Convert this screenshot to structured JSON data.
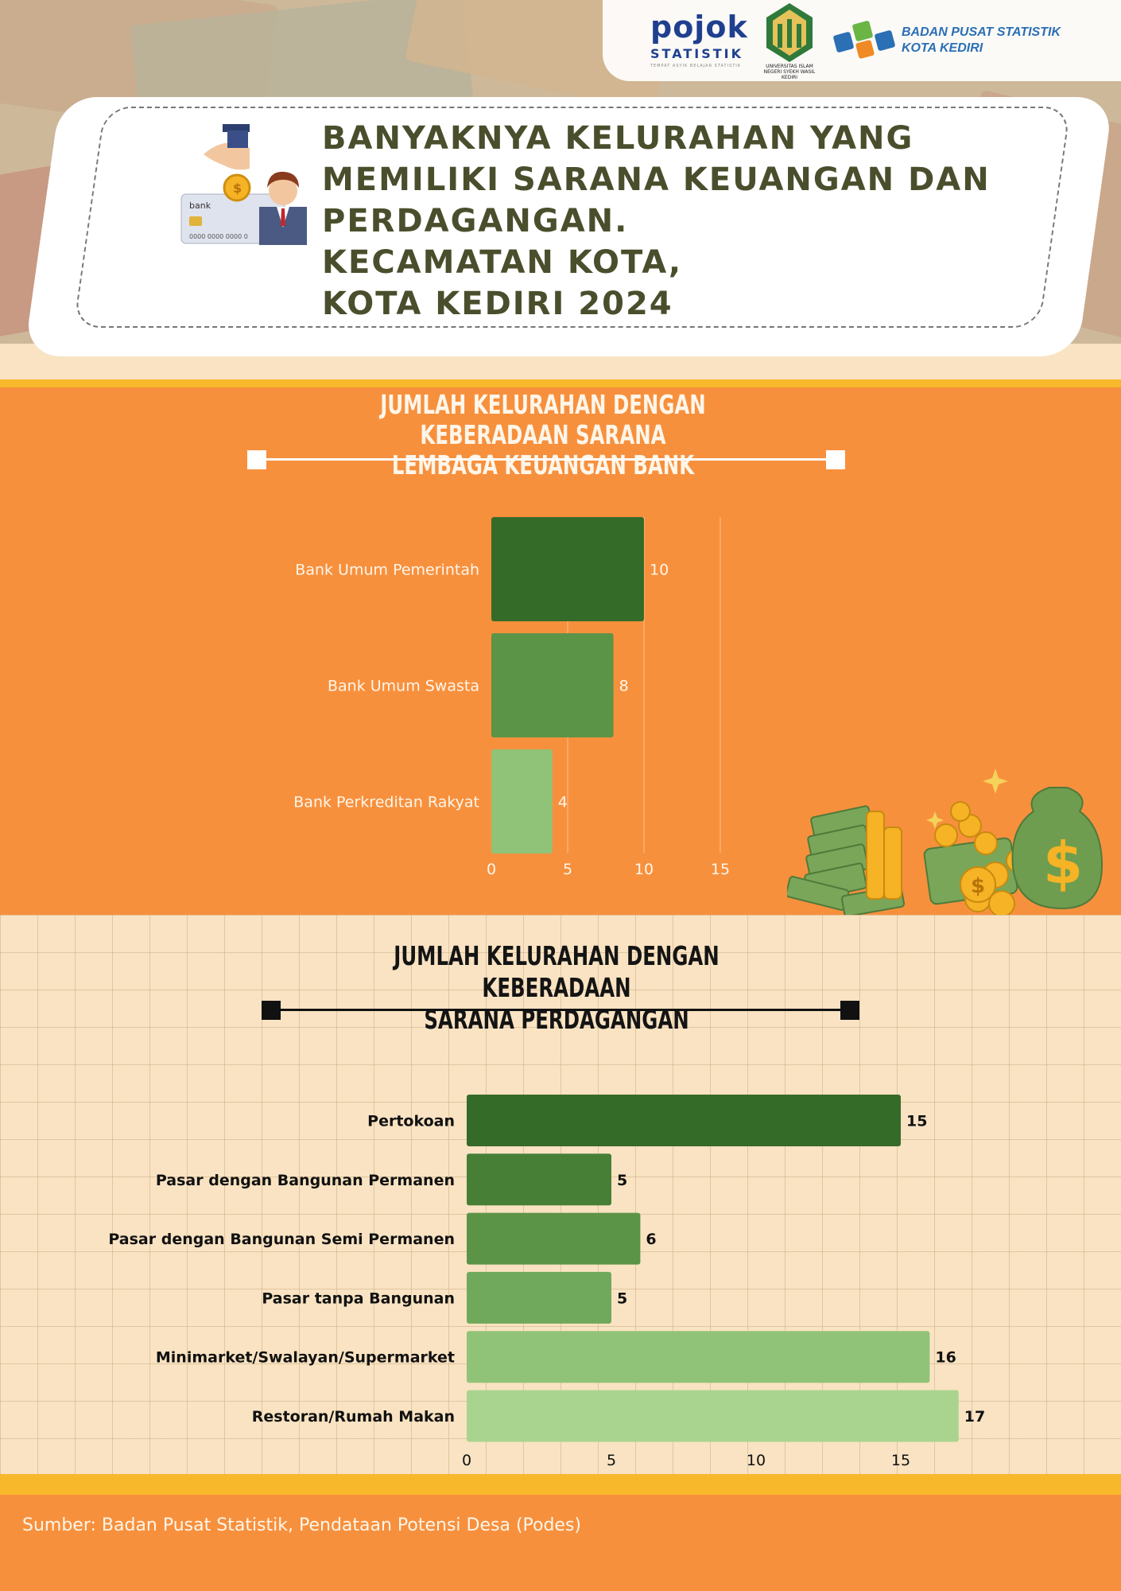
{
  "header": {
    "logo_pojok": "pojok",
    "logo_pojok_sub": "STATISTIK",
    "logo_pojok_tagline": "TEMPAT ASYIK BELAJAR STATISTIK",
    "logo_uin_label": "UNIVERSITAS ISLAM NEGERI SYEKH WASIL KEDIRI",
    "logo_bps_line1": "BADAN PUSAT STATISTIK",
    "logo_bps_line2": "KOTA KEDIRI"
  },
  "title": {
    "line1": "BANYAKNYA KELURAHAN YANG",
    "line2": "MEMILIKI SARANA KEUANGAN DAN",
    "line3": "PERDAGANGAN.",
    "line4": "KECAMATAN KOTA,",
    "line5": "KOTA KEDIRI  2024",
    "card_text_bank": "bank",
    "card_text_number": "0000 0000 0000 0"
  },
  "colors": {
    "orange": "#f7903d",
    "cream": "#f9e3c2",
    "yellow": "#f8b82b",
    "title_text": "#4a4e2c",
    "bank_bars": [
      "#356b29",
      "#5c9447",
      "#90c377"
    ],
    "trade_bars": [
      "#356b29",
      "#477f37",
      "#5c9447",
      "#70a95b",
      "#90c377",
      "#a9d48f"
    ]
  },
  "chart_data": [
    {
      "type": "bar",
      "orientation": "horizontal",
      "title": "JUMLAH KELURAHAN DENGAN KEBERADAAN SARANA LEMBAGA KEUANGAN BANK",
      "title_line1": "JUMLAH KELURAHAN DENGAN KEBERADAAN SARANA",
      "title_line2": "LEMBAGA KEUANGAN BANK",
      "categories": [
        "Bank Umum Pemerintah",
        "Bank Umum Swasta",
        "Bank Perkreditan Rakyat"
      ],
      "values": [
        10,
        8,
        4
      ],
      "xlim": [
        0,
        15
      ],
      "xticks": [
        0,
        5,
        10,
        15
      ],
      "xlabel": "",
      "ylabel": ""
    },
    {
      "type": "bar",
      "orientation": "horizontal",
      "title": "JUMLAH KELURAHAN DENGAN KEBERADAAN SARANA PERDAGANGAN",
      "title_line1": "JUMLAH KELURAHAN DENGAN KEBERADAAN",
      "title_line2": "SARANA PERDAGANGAN",
      "categories": [
        "Pertokoan",
        "Pasar dengan Bangunan Permanen",
        "Pasar dengan Bangunan Semi Permanen",
        "Pasar tanpa Bangunan",
        "Minimarket/Swalayan/Supermarket",
        "Restoran/Rumah Makan"
      ],
      "values": [
        15,
        5,
        6,
        5,
        16,
        17
      ],
      "xlim": [
        0,
        17
      ],
      "xticks": [
        0,
        5,
        10,
        15
      ],
      "xlabel": "",
      "ylabel": ""
    }
  ],
  "footer": {
    "source": "Sumber: Badan Pusat Statistik, Pendataan Potensi Desa (Podes)"
  }
}
